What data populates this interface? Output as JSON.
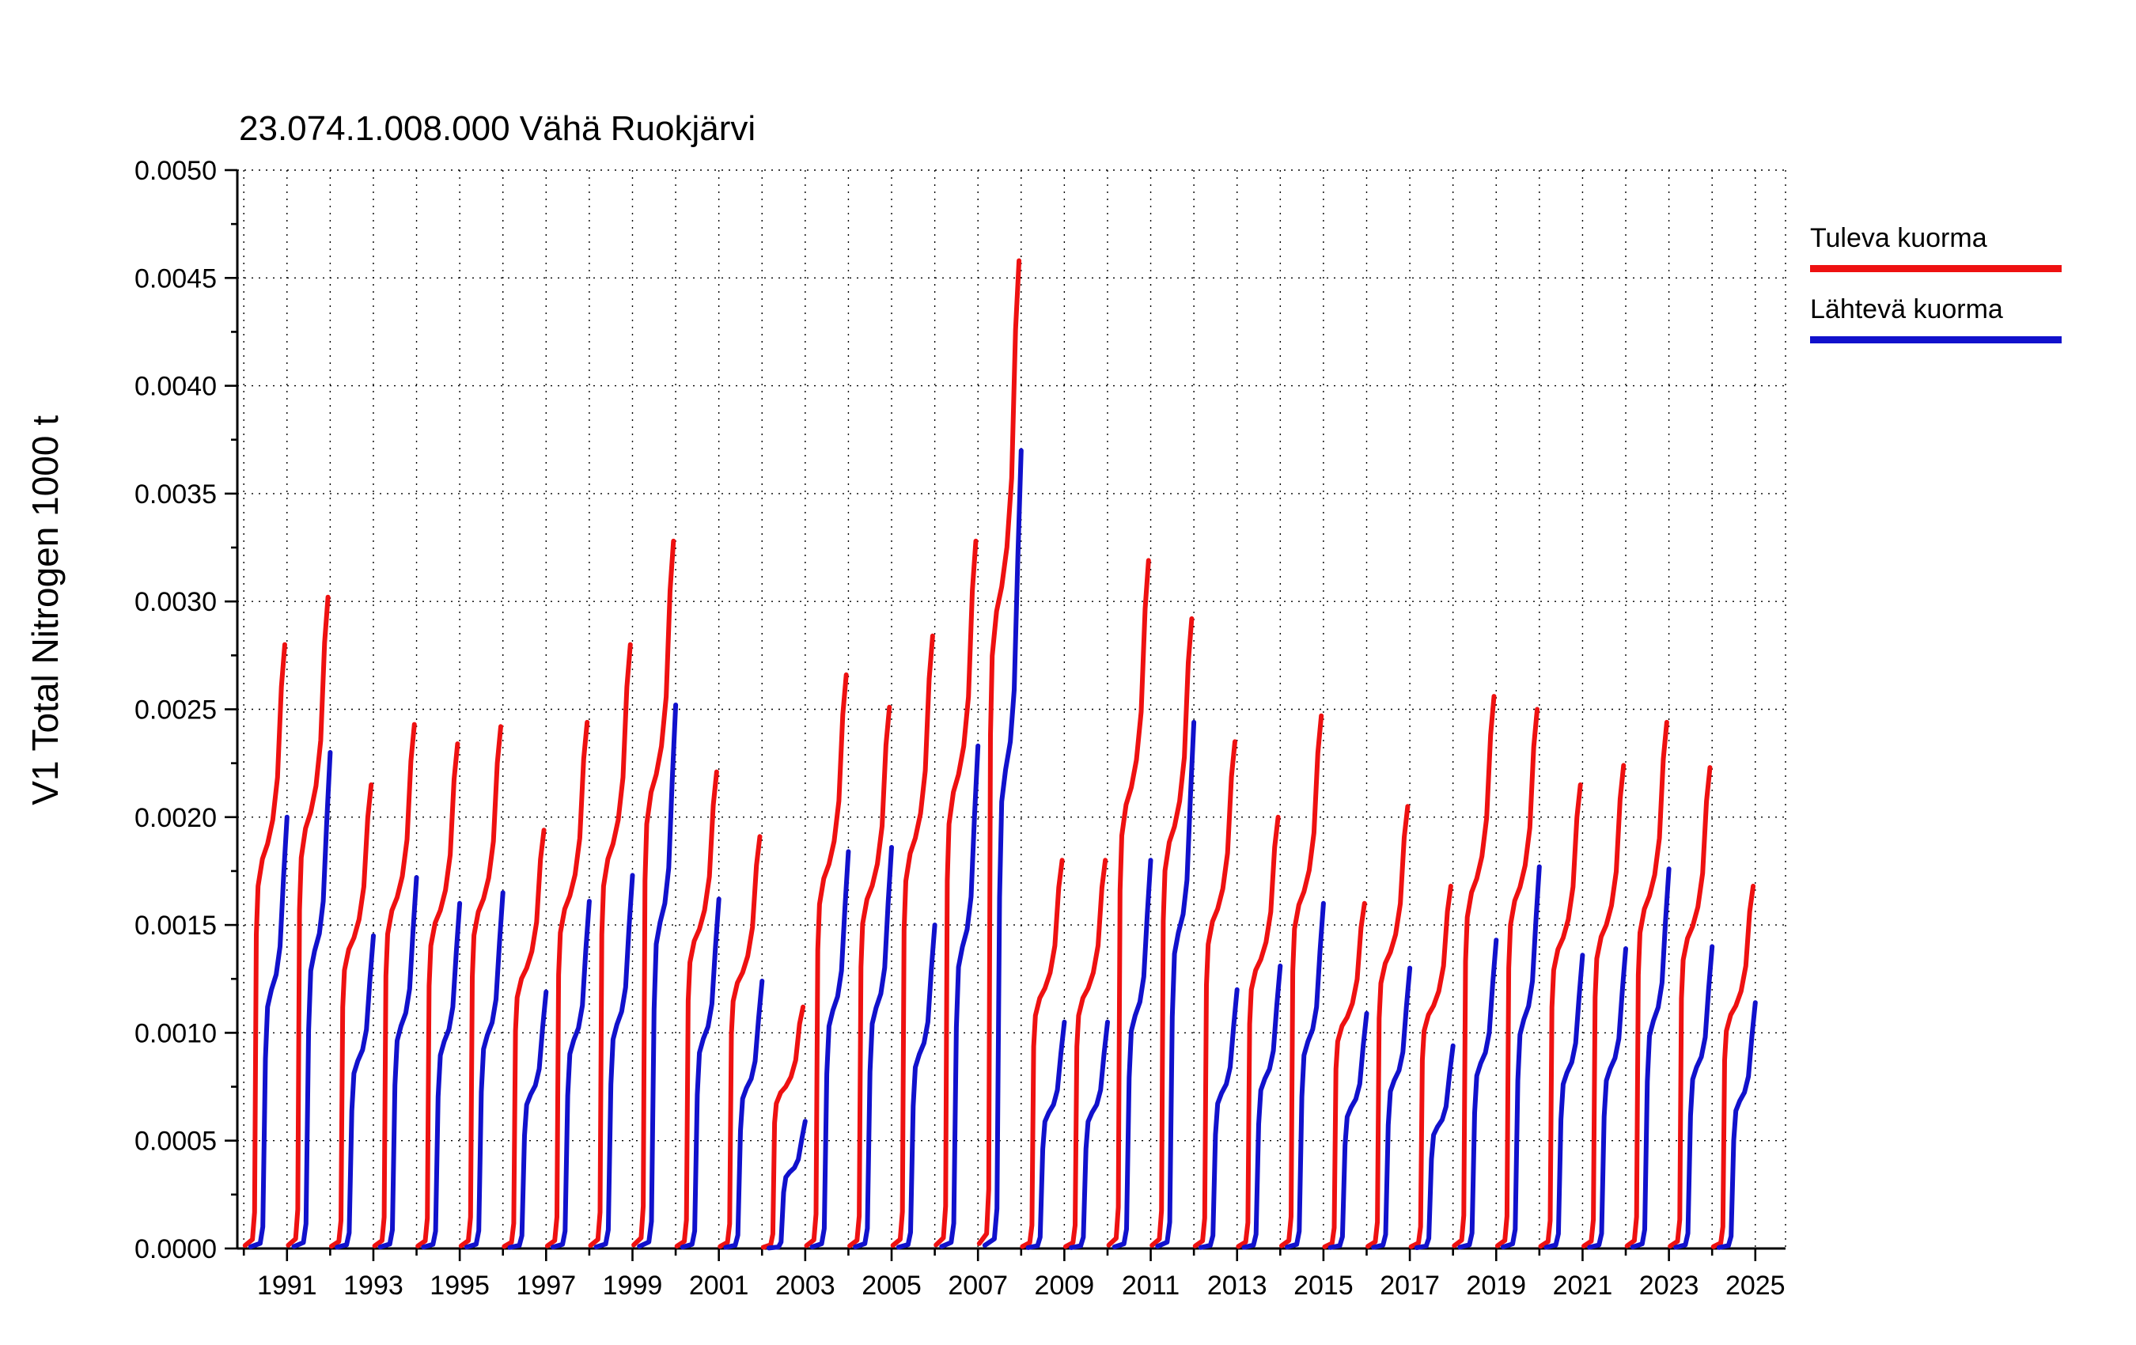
{
  "title": "23.074.1.008.000 Vähä Ruokjärvi",
  "y_axis_label": "V1 Total Nitrogen 1000 t",
  "legend": {
    "items": [
      {
        "label": "Tuleva kuorma",
        "color": "#ee1111"
      },
      {
        "label": "Lähtevä kuorma",
        "color": "#1111cc"
      }
    ]
  },
  "chart_data": {
    "type": "line",
    "title": "23.074.1.008.000 Vähä Ruokjärvi",
    "xlabel": "",
    "ylabel": "V1 Total Nitrogen 1000 t",
    "ylim": [
      0,
      0.005
    ],
    "xlim": [
      1989.85,
      2025.7
    ],
    "grid": "dotted vertical line every year, dotted horizontal line every 0.0005",
    "legend_position": "outside-right-top",
    "y_ticks": [
      0.0,
      0.0005,
      0.001,
      0.0015,
      0.002,
      0.0025,
      0.003,
      0.0035,
      0.004,
      0.0045,
      0.005
    ],
    "y_tick_labels": [
      "0.0000",
      "0.0005",
      "0.0010",
      "0.0015",
      "0.0020",
      "0.0025",
      "0.0030",
      "0.0035",
      "0.0040",
      "0.0045",
      "0.0050"
    ],
    "x_tick_years": [
      1991,
      1993,
      1995,
      1997,
      1999,
      2001,
      2003,
      2005,
      2007,
      2009,
      2011,
      2013,
      2015,
      2017,
      2019,
      2021,
      2023,
      2025
    ],
    "x_tick_labels": [
      "1991",
      "1993",
      "1995",
      "1997",
      "1999",
      "2001",
      "2003",
      "2005",
      "2007",
      "2009",
      "2011",
      "2013",
      "2015",
      "2017",
      "2019",
      "2021",
      "2023",
      "2025"
    ],
    "years": [
      1990,
      1991,
      1992,
      1993,
      1994,
      1995,
      1996,
      1997,
      1998,
      1999,
      2000,
      2001,
      2002,
      2003,
      2004,
      2005,
      2006,
      2007,
      2008,
      2009,
      2010,
      2011,
      2012,
      2013,
      2014,
      2015,
      2016,
      2017,
      2018,
      2019,
      2020,
      2021,
      2022,
      2023,
      2024
    ],
    "series": [
      {
        "name": "Tuleva kuorma",
        "color": "#ee1111",
        "profile": "tuleva",
        "annual_peaks": [
          0.0028,
          0.00302,
          0.00215,
          0.00243,
          0.00234,
          0.00242,
          0.00194,
          0.00244,
          0.0028,
          0.00328,
          0.00221,
          0.00191,
          0.00112,
          0.00266,
          0.00251,
          0.00284,
          0.00328,
          0.00458,
          0.0018,
          0.0018,
          0.00319,
          0.00292,
          0.00235,
          0.002,
          0.00247,
          0.0016,
          0.00205,
          0.00168,
          0.00256,
          0.0025,
          0.00215,
          0.00224,
          0.00244,
          0.00223,
          0.00168
        ]
      },
      {
        "name": "Lähtevä kuorma",
        "color": "#1111cc",
        "profile": "lahteva",
        "annual_peaks": [
          0.002,
          0.0023,
          0.00145,
          0.00172,
          0.0016,
          0.00165,
          0.00119,
          0.00161,
          0.00173,
          0.00252,
          0.00162,
          0.00124,
          0.00059,
          0.00184,
          0.00186,
          0.0015,
          0.00233,
          0.0037,
          0.00105,
          0.00105,
          0.0018,
          0.00244,
          0.0012,
          0.00131,
          0.0016,
          0.00109,
          0.0013,
          0.00094,
          0.00143,
          0.00177,
          0.00136,
          0.00139,
          0.00176,
          0.0014,
          0.00114
        ]
      }
    ],
    "within_year_profile": {
      "note": "cumulative annual load curves: each year rises from 0 to the annual peak, steep rise in spring, plateau, autumn rise; values are [fraction_of_year, fraction_of_annual_peak]",
      "tuleva": [
        [
          0.03,
          0.005
        ],
        [
          0.2,
          0.015
        ],
        [
          0.25,
          0.06
        ],
        [
          0.29,
          0.52
        ],
        [
          0.33,
          0.6
        ],
        [
          0.43,
          0.645
        ],
        [
          0.55,
          0.67
        ],
        [
          0.67,
          0.71
        ],
        [
          0.78,
          0.78
        ],
        [
          0.87,
          0.93
        ],
        [
          0.95,
          1.0
        ]
      ],
      "lahteva": [
        [
          0.16,
          0.004
        ],
        [
          0.38,
          0.012
        ],
        [
          0.44,
          0.05
        ],
        [
          0.5,
          0.44
        ],
        [
          0.55,
          0.56
        ],
        [
          0.64,
          0.6
        ],
        [
          0.75,
          0.635
        ],
        [
          0.84,
          0.7
        ],
        [
          0.92,
          0.86
        ],
        [
          1.0,
          1.0
        ]
      ]
    }
  }
}
